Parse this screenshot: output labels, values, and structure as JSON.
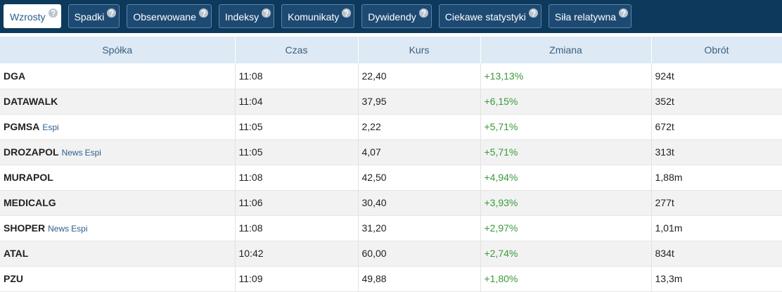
{
  "tabs": [
    {
      "label": "Wzrosty",
      "active": true
    },
    {
      "label": "Spadki"
    },
    {
      "label": "Obserwowane"
    },
    {
      "label": "Indeksy"
    },
    {
      "label": "Komunikaty"
    },
    {
      "label": "Dywidendy"
    },
    {
      "label": "Ciekawe statystyki"
    },
    {
      "label": "Siła relatywna"
    }
  ],
  "table": {
    "headers": [
      "Spółka",
      "Czas",
      "Kurs",
      "Zmiana",
      "Obrót"
    ],
    "rows": [
      {
        "name": "DGA",
        "tags": [],
        "time": "11:08",
        "price": "22,40",
        "change": "+13,13%",
        "turnover": "924t"
      },
      {
        "name": "DATAWALK",
        "tags": [],
        "time": "11:04",
        "price": "37,95",
        "change": "+6,15%",
        "turnover": "352t"
      },
      {
        "name": "PGMSA",
        "tags": [
          "Espi"
        ],
        "time": "11:05",
        "price": "2,22",
        "change": "+5,71%",
        "turnover": "672t"
      },
      {
        "name": "DROZAPOL",
        "tags": [
          "News",
          "Espi"
        ],
        "time": "11:05",
        "price": "4,07",
        "change": "+5,71%",
        "turnover": "313t"
      },
      {
        "name": "MURAPOL",
        "tags": [],
        "time": "11:08",
        "price": "42,50",
        "change": "+4,94%",
        "turnover": "1,88m"
      },
      {
        "name": "MEDICALG",
        "tags": [],
        "time": "11:06",
        "price": "30,40",
        "change": "+3,93%",
        "turnover": "277t"
      },
      {
        "name": "SHOPER",
        "tags": [
          "News",
          "Espi"
        ],
        "time": "11:08",
        "price": "31,20",
        "change": "+2,97%",
        "turnover": "1,01m"
      },
      {
        "name": "ATAL",
        "tags": [],
        "time": "10:42",
        "price": "60,00",
        "change": "+2,74%",
        "turnover": "834t"
      },
      {
        "name": "PZU",
        "tags": [],
        "time": "11:09",
        "price": "49,88",
        "change": "+1,80%",
        "turnover": "13,3m"
      }
    ]
  }
}
